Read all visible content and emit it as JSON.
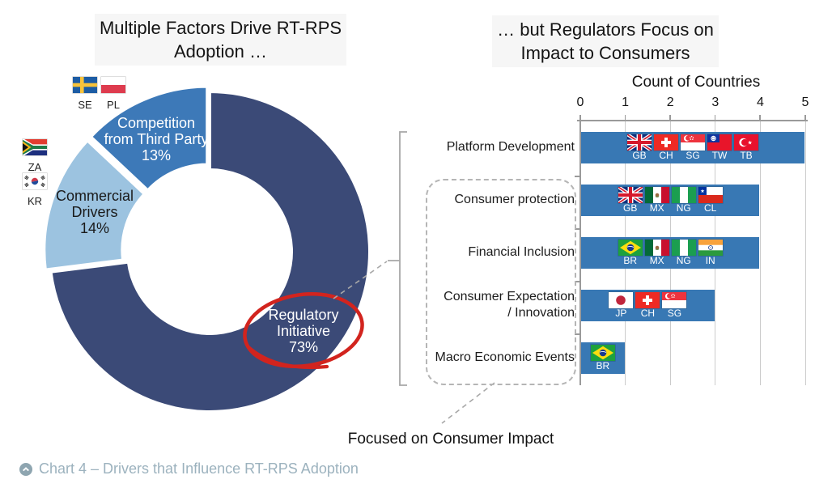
{
  "left_chart": {
    "title_lines": [
      "Multiple Factors Drive RT-RPS",
      "Adoption …"
    ],
    "donut": {
      "segments": [
        {
          "name": "Regulatory Initiative",
          "pct": 73,
          "color": "#3B4A77",
          "text_color": "#ffffff",
          "label_lines": [
            "Regulatory",
            "Initiative",
            "73%"
          ]
        },
        {
          "name": "Commercial Drivers",
          "pct": 14,
          "color": "#9CC3E0",
          "text_color": "#1a1a1a",
          "label_lines": [
            "Commercial",
            "Drivers",
            "14%"
          ]
        },
        {
          "name": "Competition from Third Party",
          "pct": 13,
          "color": "#3D79B8",
          "text_color": "#ffffff",
          "label_lines": [
            "Competition",
            "from Third Party",
            "13%"
          ]
        }
      ],
      "highlight": {
        "segment": "Regulatory Initiative",
        "shape": "hand-drawn red ellipse",
        "color": "#D2241E"
      }
    },
    "flag_annotations": [
      {
        "code": "SE"
      },
      {
        "code": "PL"
      },
      {
        "code": "ZA"
      },
      {
        "code": "KR"
      }
    ]
  },
  "right_chart": {
    "title_lines": [
      "… but Regulators Focus on",
      "Impact to Consumers"
    ],
    "axis_title": "Count of Countries",
    "axis_ticks": [
      "0",
      "1",
      "2",
      "3",
      "4",
      "5"
    ],
    "bar_color": "#3878B4",
    "rows": [
      {
        "label_lines": [
          "Platform Development"
        ],
        "value": 5,
        "flags": [
          "GB",
          "CH",
          "SG",
          "TW",
          "TB"
        ]
      },
      {
        "label_lines": [
          "Consumer protection"
        ],
        "value": 4,
        "flags": [
          "GB",
          "MX",
          "NG",
          "CL"
        ]
      },
      {
        "label_lines": [
          "Financial Inclusion"
        ],
        "value": 4,
        "flags": [
          "BR",
          "MX",
          "NG",
          "IN"
        ]
      },
      {
        "label_lines": [
          "Consumer Expectation",
          "/ Innovation"
        ],
        "value": 3,
        "flags": [
          "JP",
          "CH",
          "SG"
        ]
      },
      {
        "label_lines": [
          "Macro Economic Events"
        ],
        "value": 1,
        "flags": [
          "BR"
        ]
      }
    ],
    "focus_note": "Focused on Consumer Impact"
  },
  "caption": {
    "icon": "chevron-up-circle-icon",
    "text": "Chart 4 – Drivers that Influence RT-RPS Adoption"
  },
  "chart_data": [
    {
      "type": "pie",
      "subtype": "donut",
      "title": "Multiple Factors Drive RT-RPS Adoption …",
      "labels": [
        "Regulatory Initiative",
        "Commercial Drivers",
        "Competition from Third Party"
      ],
      "values": [
        73,
        14,
        13
      ],
      "unit": "%",
      "colors": [
        "#3B4A77",
        "#9CC3E0",
        "#3D79B8"
      ],
      "annotations": [
        "SE",
        "PL",
        "ZA",
        "KR",
        "Regulatory Initiative 73% circled in red"
      ]
    },
    {
      "type": "bar",
      "orientation": "horizontal",
      "title": "… but Regulators Focus on Impact to Consumers",
      "xlabel": "Count of Countries",
      "xlim": [
        0,
        5
      ],
      "grid": true,
      "categories": [
        "Platform Development",
        "Consumer protection",
        "Financial Inclusion",
        "Consumer Expectation / Innovation",
        "Macro Economic Events"
      ],
      "values": [
        5,
        4,
        4,
        3,
        1
      ],
      "bar_flags": [
        [
          "GB",
          "CH",
          "SG",
          "TW",
          "TB"
        ],
        [
          "GB",
          "MX",
          "NG",
          "CL"
        ],
        [
          "BR",
          "MX",
          "NG",
          "IN"
        ],
        [
          "JP",
          "CH",
          "SG"
        ],
        [
          "BR"
        ]
      ],
      "annotations": [
        "Dashed box around consumer-impact categories",
        "Focused on Consumer Impact"
      ]
    }
  ]
}
